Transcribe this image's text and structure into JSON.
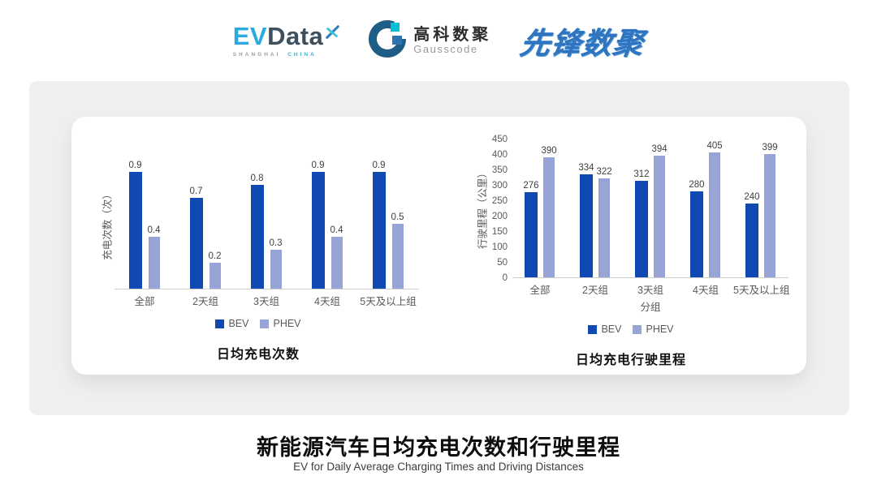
{
  "header": {
    "evdata": {
      "ev": "EV",
      "data": "Data",
      "sub_left": "SHANGHAI",
      "sub_right": "CHINA"
    },
    "gausscode": {
      "cn": "高科数聚",
      "en": "Gausscode"
    },
    "xianfeng": {
      "text": "先锋数聚"
    }
  },
  "footer": {
    "title": "新能源汽车日均充电次数和行驶里程",
    "subtitle": "EV for Daily Average Charging Times and Driving Distances"
  },
  "colors": {
    "bev": "#1049b2",
    "phev": "#98a3d6",
    "accent_cyan": "#29aae1",
    "dark_slate": "#3e4f5d"
  },
  "chart_data": [
    {
      "type": "bar",
      "title": "日均充电次数",
      "ylabel": "充电次数（次）",
      "xlabel": "",
      "categories": [
        "全部",
        "2天组",
        "3天组",
        "4天组",
        "5天及以上组"
      ],
      "series": [
        {
          "name": "BEV",
          "values": [
            0.9,
            0.7,
            0.8,
            0.9,
            0.9
          ]
        },
        {
          "name": "PHEV",
          "values": [
            0.4,
            0.2,
            0.3,
            0.4,
            0.5
          ]
        }
      ],
      "ylim": [
        0,
        1.0
      ],
      "yticks": [],
      "grid": false,
      "data_labels": true,
      "legend_position": "bottom"
    },
    {
      "type": "bar",
      "title": "日均充电行驶里程",
      "ylabel": "行驶里程（公里）",
      "xlabel": "分组",
      "categories": [
        "全部",
        "2天组",
        "3天组",
        "4天组",
        "5天及以上组"
      ],
      "series": [
        {
          "name": "BEV",
          "values": [
            276,
            334,
            312,
            280,
            240
          ]
        },
        {
          "name": "PHEV",
          "values": [
            390,
            322,
            394,
            405,
            399
          ]
        }
      ],
      "ylim": [
        0,
        450
      ],
      "yticks": [
        0,
        50,
        100,
        150,
        200,
        250,
        300,
        350,
        400,
        450
      ],
      "grid": false,
      "data_labels": true,
      "legend_position": "bottom"
    }
  ]
}
